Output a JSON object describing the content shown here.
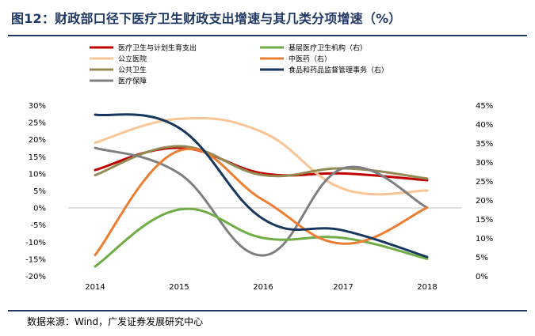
{
  "header": {
    "title": "图12：财政部口径下医疗卫生财政支出增速与其几类分项增速（%）"
  },
  "footer": {
    "source": "数据来源：Wind，广发证券发展研究中心"
  },
  "chart_data": {
    "type": "line",
    "title": "图12：财政部口径下医疗卫生财政支出增速与其几类分项增速（%）",
    "x": [
      "2014",
      "2015",
      "2016",
      "2017",
      "2018"
    ],
    "y_left": {
      "ticks": [
        "30%",
        "25%",
        "20%",
        "15%",
        "10%",
        "5%",
        "0%",
        "-5%",
        "-10%",
        "-15%",
        "-20%"
      ],
      "range": [
        -20,
        30
      ]
    },
    "y_right": {
      "ticks": [
        "45%",
        "40%",
        "35%",
        "30%",
        "25%",
        "20%",
        "15%",
        "10%",
        "5%",
        "0%"
      ],
      "range": [
        0,
        45
      ]
    },
    "series": [
      {
        "name": "医疗卫生与计划生育支出",
        "axis": "left",
        "color": "#c00000",
        "values": [
          11,
          17.5,
          10,
          10,
          8
        ]
      },
      {
        "name": "公立医院",
        "axis": "left",
        "color": "#f8c597",
        "values": [
          19,
          26,
          22,
          5.5,
          5
        ]
      },
      {
        "name": "公共卫生",
        "axis": "left",
        "color": "#948a54",
        "values": [
          9.5,
          18,
          9.5,
          11.5,
          8.5
        ]
      },
      {
        "name": "医疗保障",
        "axis": "left",
        "color": "#7f7f7f",
        "values": [
          17.5,
          10,
          -14,
          11.5,
          0
        ]
      },
      {
        "name": "基层医疗卫生机构（右）",
        "axis": "right",
        "color": "#70ad47",
        "values": [
          2.5,
          17.5,
          10,
          10,
          4.5
        ]
      },
      {
        "name": "中医药（右）",
        "axis": "right",
        "color": "#ed7d31",
        "values": [
          5.5,
          33,
          20,
          8.5,
          18
        ]
      },
      {
        "name": "食品和药品监督管理事务（右）",
        "axis": "right",
        "color": "#17375e",
        "values": [
          42.5,
          39,
          15,
          12,
          5
        ]
      }
    ],
    "legend_position": "top"
  }
}
